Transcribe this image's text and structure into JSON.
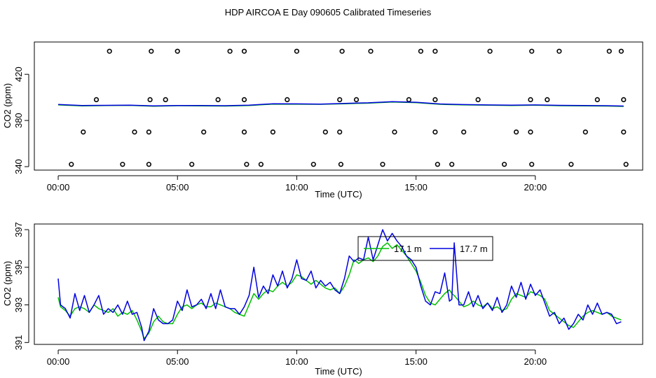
{
  "title": "HDP AIRCOA E  Day 090605  Calibrated Timeseries",
  "chart_data": [
    {
      "type": "line",
      "panel": "top",
      "xlabel": "Time (UTC)",
      "ylabel": "CO2 (ppm)",
      "xlim": [
        -1.0,
        24.5
      ],
      "ylim": [
        337,
        448
      ],
      "xticks": [
        0,
        5,
        10,
        15,
        20
      ],
      "xtick_labels": [
        "00:00",
        "05:00",
        "10:00",
        "15:00",
        "20:00"
      ],
      "yticks": [
        340,
        380,
        420
      ],
      "ytick_labels": [
        "340",
        "380",
        "420"
      ],
      "series": [
        {
          "name": "17.1 m",
          "color": "#00c000",
          "x": [
            0,
            1,
            2,
            3,
            4,
            5,
            6,
            7,
            8,
            9,
            10,
            11,
            12,
            13,
            14,
            15,
            16,
            17,
            18,
            19,
            20,
            21,
            22,
            23,
            23.7
          ],
          "y": [
            393.5,
            392.7,
            392.9,
            393.1,
            392.4,
            392.8,
            392.6,
            392.5,
            393.0,
            394.2,
            394.1,
            394.0,
            394.5,
            395.0,
            396.0,
            395.5,
            394.0,
            393.5,
            393.2,
            393.0,
            393.2,
            392.8,
            392.6,
            392.5,
            392.2
          ]
        },
        {
          "name": "17.7 m",
          "color": "#0000e0",
          "x": [
            0,
            1,
            2,
            3,
            4,
            5,
            6,
            7,
            8,
            9,
            10,
            11,
            12,
            13,
            14,
            15,
            16,
            17,
            18,
            19,
            20,
            21,
            22,
            23,
            23.7
          ],
          "y": [
            393.9,
            393.0,
            393.1,
            393.3,
            392.6,
            393.0,
            392.9,
            392.8,
            393.2,
            394.5,
            394.4,
            394.2,
            394.8,
            395.3,
            396.3,
            395.8,
            394.3,
            393.8,
            393.5,
            393.3,
            393.5,
            393.1,
            392.9,
            392.8,
            392.5
          ]
        }
      ],
      "scatter": [
        {
          "x": 0.55,
          "y": 342
        },
        {
          "x": 2.7,
          "y": 342
        },
        {
          "x": 3.8,
          "y": 342
        },
        {
          "x": 5.6,
          "y": 342
        },
        {
          "x": 7.9,
          "y": 342
        },
        {
          "x": 8.5,
          "y": 342
        },
        {
          "x": 10.7,
          "y": 342
        },
        {
          "x": 11.85,
          "y": 342
        },
        {
          "x": 13.6,
          "y": 342
        },
        {
          "x": 15.9,
          "y": 342
        },
        {
          "x": 16.5,
          "y": 342
        },
        {
          "x": 18.7,
          "y": 342
        },
        {
          "x": 19.85,
          "y": 342
        },
        {
          "x": 21.5,
          "y": 342
        },
        {
          "x": 23.8,
          "y": 342
        },
        {
          "x": 1.05,
          "y": 370
        },
        {
          "x": 3.2,
          "y": 370
        },
        {
          "x": 3.8,
          "y": 370
        },
        {
          "x": 6.1,
          "y": 370
        },
        {
          "x": 7.8,
          "y": 370
        },
        {
          "x": 9.0,
          "y": 370
        },
        {
          "x": 11.2,
          "y": 370
        },
        {
          "x": 11.8,
          "y": 370
        },
        {
          "x": 14.1,
          "y": 370
        },
        {
          "x": 15.8,
          "y": 370
        },
        {
          "x": 17.0,
          "y": 370
        },
        {
          "x": 19.2,
          "y": 370
        },
        {
          "x": 19.8,
          "y": 370
        },
        {
          "x": 22.1,
          "y": 370
        },
        {
          "x": 23.7,
          "y": 370
        },
        {
          "x": 1.6,
          "y": 398
        },
        {
          "x": 3.85,
          "y": 398
        },
        {
          "x": 4.5,
          "y": 398
        },
        {
          "x": 6.7,
          "y": 398
        },
        {
          "x": 7.8,
          "y": 398
        },
        {
          "x": 9.6,
          "y": 398
        },
        {
          "x": 11.8,
          "y": 398
        },
        {
          "x": 12.5,
          "y": 398
        },
        {
          "x": 14.7,
          "y": 398
        },
        {
          "x": 15.8,
          "y": 398
        },
        {
          "x": 17.6,
          "y": 398
        },
        {
          "x": 19.8,
          "y": 398
        },
        {
          "x": 20.5,
          "y": 398
        },
        {
          "x": 22.6,
          "y": 398
        },
        {
          "x": 23.7,
          "y": 398
        },
        {
          "x": 2.15,
          "y": 440
        },
        {
          "x": 3.9,
          "y": 440
        },
        {
          "x": 5.0,
          "y": 440
        },
        {
          "x": 7.2,
          "y": 440
        },
        {
          "x": 7.8,
          "y": 440
        },
        {
          "x": 10.0,
          "y": 440
        },
        {
          "x": 11.9,
          "y": 440
        },
        {
          "x": 13.1,
          "y": 440
        },
        {
          "x": 15.2,
          "y": 440
        },
        {
          "x": 15.8,
          "y": 440
        },
        {
          "x": 18.1,
          "y": 440
        },
        {
          "x": 19.85,
          "y": 440
        },
        {
          "x": 21.0,
          "y": 440
        },
        {
          "x": 23.1,
          "y": 440
        },
        {
          "x": 23.6,
          "y": 440
        }
      ]
    },
    {
      "type": "line",
      "panel": "bottom",
      "xlabel": "Time (UTC)",
      "ylabel": "CO2 (ppm)",
      "xlim": [
        -1.0,
        24.5
      ],
      "ylim": [
        390.9,
        397.3
      ],
      "xticks": [
        0,
        5,
        10,
        15,
        20
      ],
      "xtick_labels": [
        "00:00",
        "05:00",
        "10:00",
        "15:00",
        "20:00"
      ],
      "yticks": [
        391,
        393,
        395,
        397
      ],
      "ytick_labels": [
        "391",
        "393",
        "395",
        "397"
      ],
      "legend": {
        "position": "top-center",
        "entries": [
          "17.1 m",
          "17.7 m"
        ]
      },
      "series": [
        {
          "name": "17.1 m",
          "color": "#00c000",
          "x": [
            0.0,
            0.1,
            0.3,
            0.5,
            0.7,
            0.9,
            1.1,
            1.3,
            1.5,
            1.7,
            1.9,
            2.1,
            2.3,
            2.5,
            2.7,
            2.9,
            3.1,
            3.3,
            3.5,
            3.6,
            3.8,
            4.0,
            4.2,
            4.4,
            4.6,
            4.8,
            5.0,
            5.2,
            5.4,
            5.6,
            5.8,
            6.0,
            6.2,
            6.4,
            6.6,
            6.8,
            7.0,
            7.2,
            7.4,
            7.6,
            7.8,
            8.0,
            8.2,
            8.4,
            8.6,
            8.8,
            9.0,
            9.2,
            9.4,
            9.6,
            9.8,
            10.0,
            10.2,
            10.4,
            10.6,
            10.8,
            11.0,
            11.2,
            11.4,
            11.6,
            11.8,
            12.0,
            12.2,
            12.4,
            12.6,
            12.8,
            13.0,
            13.2,
            13.4,
            13.6,
            13.8,
            14.0,
            14.2,
            14.4,
            14.6,
            14.8,
            15.0,
            15.2,
            15.4,
            15.6,
            15.8,
            16.0,
            16.2,
            16.4,
            16.5,
            16.6,
            16.8,
            17.0,
            17.2,
            17.4,
            17.6,
            17.8,
            18.0,
            18.2,
            18.4,
            18.6,
            18.8,
            19.0,
            19.2,
            19.4,
            19.6,
            19.8,
            20.0,
            20.2,
            20.4,
            20.6,
            20.8,
            21.0,
            21.2,
            21.4,
            21.6,
            21.8,
            22.0,
            22.2,
            22.4,
            22.6,
            22.8,
            23.0,
            23.2,
            23.4,
            23.6
          ],
          "y": [
            393.4,
            392.9,
            392.7,
            392.4,
            392.8,
            392.9,
            392.8,
            392.6,
            393.0,
            392.8,
            392.7,
            392.6,
            392.8,
            392.4,
            392.6,
            392.5,
            392.7,
            392.2,
            391.6,
            391.2,
            391.5,
            392.1,
            392.4,
            392.1,
            392.0,
            392.0,
            392.5,
            392.9,
            393.0,
            392.8,
            393.0,
            393.1,
            392.9,
            392.9,
            393.1,
            393.0,
            392.9,
            392.8,
            392.6,
            392.5,
            392.4,
            393.0,
            393.6,
            393.3,
            393.6,
            393.8,
            393.7,
            394.0,
            394.2,
            394.0,
            394.2,
            394.6,
            394.5,
            394.3,
            394.1,
            394.3,
            394.1,
            393.9,
            393.8,
            393.9,
            393.6,
            394.0,
            394.6,
            395.4,
            395.2,
            395.4,
            395.5,
            395.3,
            395.6,
            396.1,
            396.3,
            396.0,
            396.2,
            395.9,
            395.6,
            395.2,
            394.8,
            394.2,
            393.5,
            393.1,
            393.0,
            393.3,
            393.6,
            393.8,
            393.6,
            393.5,
            393.2,
            392.9,
            393.0,
            393.2,
            393.0,
            392.9,
            393.1,
            392.8,
            392.9,
            392.7,
            392.8,
            393.3,
            393.6,
            393.5,
            393.4,
            393.7,
            393.6,
            393.5,
            393.3,
            392.7,
            392.5,
            392.3,
            392.1,
            391.9,
            391.8,
            392.1,
            392.4,
            392.6,
            392.7,
            392.6,
            392.5,
            392.6,
            392.4,
            392.3,
            392.2
          ]
        },
        {
          "name": "17.7 m",
          "color": "#0000e0",
          "x": [
            0.0,
            0.1,
            0.3,
            0.5,
            0.7,
            0.9,
            1.1,
            1.3,
            1.5,
            1.7,
            1.9,
            2.1,
            2.3,
            2.5,
            2.7,
            2.9,
            3.1,
            3.3,
            3.5,
            3.6,
            3.8,
            4.0,
            4.2,
            4.4,
            4.6,
            4.8,
            5.0,
            5.2,
            5.4,
            5.6,
            5.8,
            6.0,
            6.2,
            6.4,
            6.6,
            6.8,
            7.0,
            7.2,
            7.4,
            7.6,
            7.8,
            8.0,
            8.2,
            8.4,
            8.6,
            8.8,
            9.0,
            9.2,
            9.4,
            9.6,
            9.8,
            10.0,
            10.2,
            10.4,
            10.6,
            10.8,
            11.0,
            11.2,
            11.4,
            11.6,
            11.8,
            12.0,
            12.2,
            12.4,
            12.6,
            12.8,
            13.0,
            13.2,
            13.4,
            13.6,
            13.8,
            14.0,
            14.2,
            14.4,
            14.6,
            14.8,
            15.0,
            15.2,
            15.4,
            15.6,
            15.8,
            16.0,
            16.2,
            16.4,
            16.5,
            16.6,
            16.8,
            17.0,
            17.2,
            17.4,
            17.6,
            17.8,
            18.0,
            18.2,
            18.4,
            18.6,
            18.8,
            19.0,
            19.2,
            19.4,
            19.6,
            19.8,
            20.0,
            20.2,
            20.4,
            20.6,
            20.8,
            21.0,
            21.2,
            21.4,
            21.6,
            21.8,
            22.0,
            22.2,
            22.4,
            22.6,
            22.8,
            23.0,
            23.2,
            23.4,
            23.6
          ],
          "y": [
            394.4,
            393.0,
            392.8,
            392.3,
            393.6,
            392.7,
            393.5,
            392.6,
            393.0,
            393.5,
            392.5,
            392.8,
            392.6,
            393.0,
            392.5,
            393.2,
            392.5,
            392.6,
            391.8,
            391.1,
            391.6,
            392.8,
            392.2,
            392.0,
            392.0,
            392.2,
            393.2,
            392.7,
            393.8,
            392.9,
            393.0,
            393.3,
            392.8,
            393.6,
            392.8,
            393.8,
            392.9,
            392.8,
            392.8,
            392.5,
            392.9,
            393.5,
            395.0,
            393.4,
            394.0,
            393.6,
            394.6,
            394.0,
            394.8,
            393.9,
            394.4,
            395.4,
            394.4,
            394.3,
            394.8,
            393.9,
            394.3,
            394.0,
            394.2,
            393.8,
            393.6,
            394.4,
            395.6,
            395.3,
            395.5,
            395.4,
            396.6,
            395.4,
            396.2,
            397.0,
            396.4,
            396.8,
            396.4,
            396.1,
            395.6,
            395.4,
            395.0,
            394.0,
            393.2,
            393.0,
            393.7,
            393.6,
            394.7,
            393.2,
            393.3,
            396.3,
            393.0,
            393.0,
            393.7,
            392.9,
            393.5,
            392.8,
            393.1,
            392.7,
            393.4,
            392.6,
            393.0,
            394.0,
            393.4,
            394.2,
            393.3,
            394.1,
            393.5,
            393.8,
            393.1,
            392.4,
            392.6,
            392.0,
            392.3,
            391.7,
            392.0,
            392.5,
            392.2,
            393.0,
            392.5,
            393.1,
            392.5,
            392.6,
            392.5,
            392.0,
            392.1
          ]
        }
      ]
    }
  ]
}
